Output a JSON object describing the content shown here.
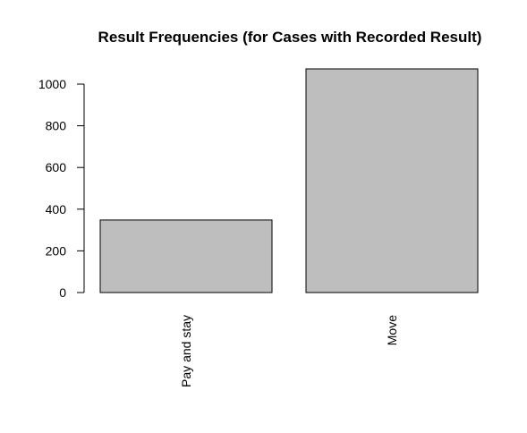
{
  "chart_data": {
    "type": "bar",
    "title": "Result Frequencies (for Cases with Recorded Result)",
    "xlabel": "",
    "ylabel": "",
    "categories": [
      "Pay and stay",
      "Move"
    ],
    "values": [
      348,
      1073
    ],
    "ylim": [
      0,
      1100
    ],
    "y_ticks": [
      0,
      200,
      400,
      600,
      800,
      1000
    ],
    "y_tick_labels": [
      "0",
      "200",
      "400",
      "600",
      "800",
      "1000"
    ],
    "x_tick_orientation": "vertical",
    "bar_color": "#bebebe",
    "grid": false,
    "legend": "none"
  }
}
